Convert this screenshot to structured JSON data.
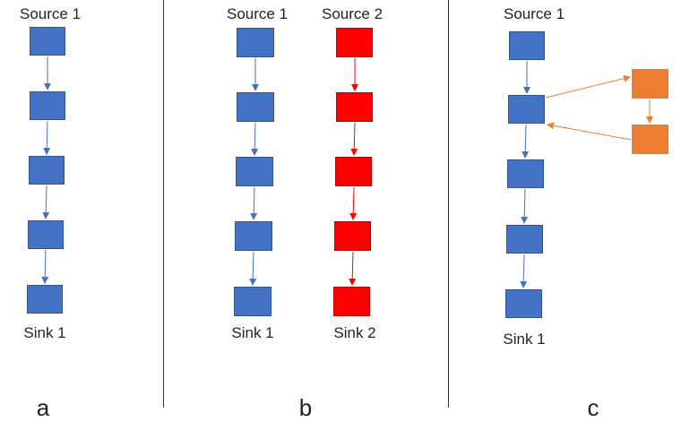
{
  "colors": {
    "blue": "#4472C4",
    "blue_border": "#2F5597",
    "red": "#FF0000",
    "red_border": "#C00000",
    "orange": "#ED7D31"
  },
  "panels": {
    "a": {
      "letter": "a",
      "source": "Source 1",
      "sink": "Sink 1"
    },
    "b": {
      "letter": "b",
      "source1": "Source 1",
      "source2": "Source 2",
      "sink1": "Sink 1",
      "sink2": "Sink 2"
    },
    "c": {
      "letter": "c",
      "source": "Source 1",
      "sink": "Sink 1"
    }
  }
}
